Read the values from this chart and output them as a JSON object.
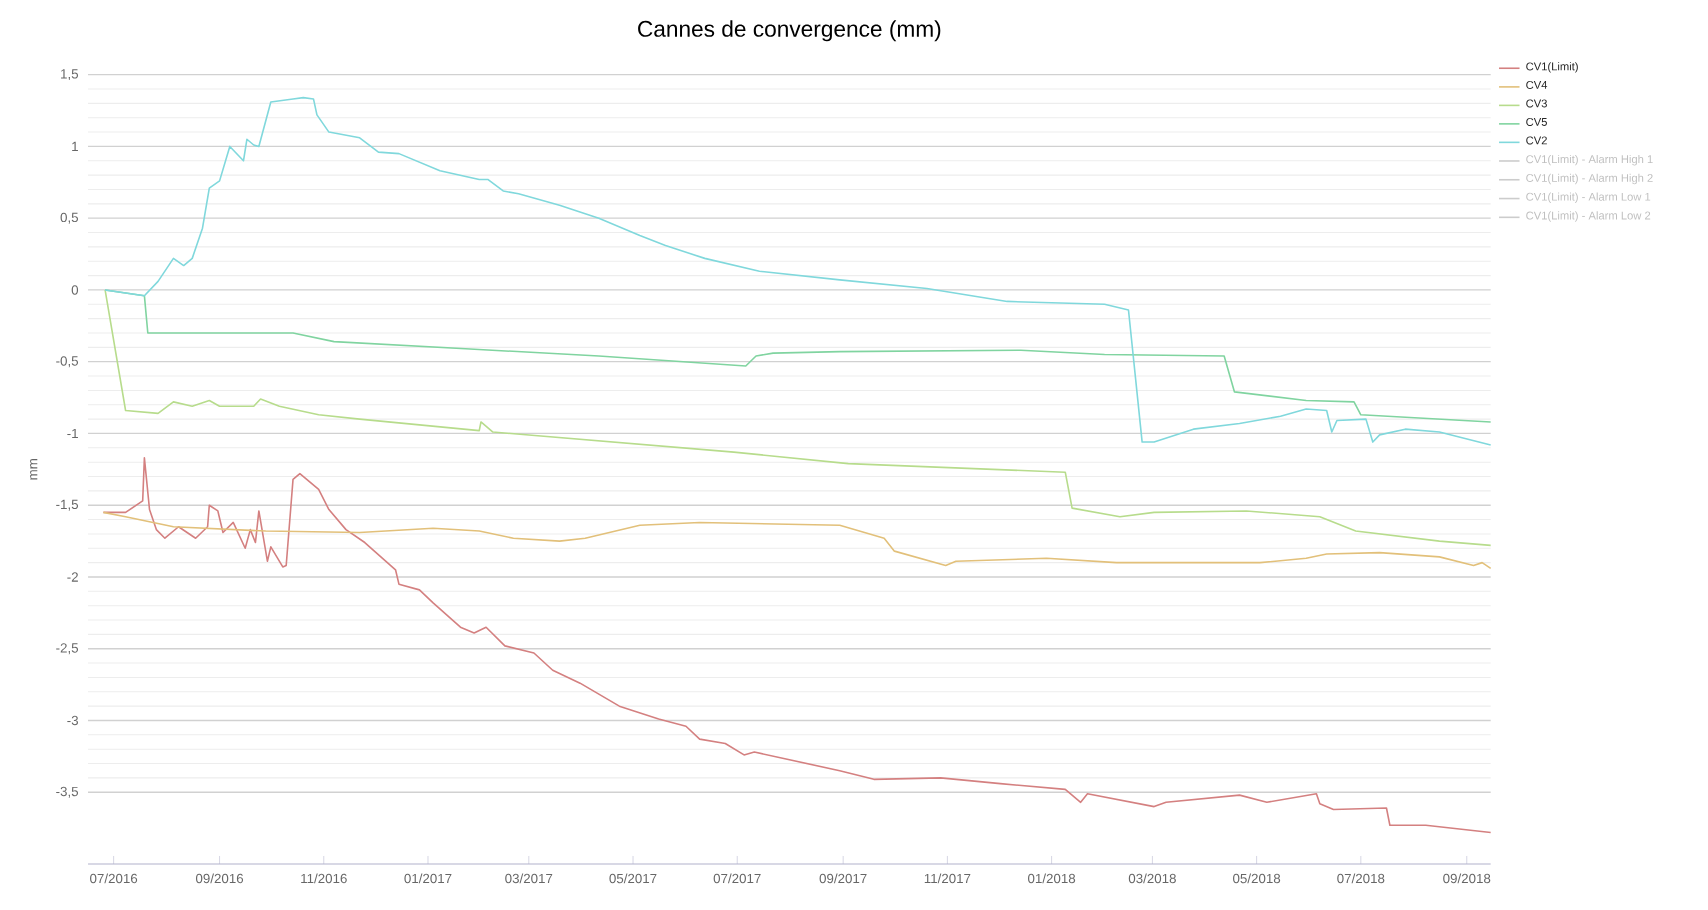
{
  "chart_data": {
    "type": "line",
    "title": "Cannes de convergence (mm)",
    "ylabel": "mm",
    "xlim": [
      "2016-06-16",
      "2018-09-15"
    ],
    "ylim": [
      -4,
      1.5
    ],
    "xticks": [
      {
        "value": "2016-07-01",
        "label": "07/2016"
      },
      {
        "value": "2016-09-01",
        "label": "09/2016"
      },
      {
        "value": "2016-11-01",
        "label": "11/2016"
      },
      {
        "value": "2017-01-01",
        "label": "01/2017"
      },
      {
        "value": "2017-03-01",
        "label": "03/2017"
      },
      {
        "value": "2017-05-01",
        "label": "05/2017"
      },
      {
        "value": "2017-07-01",
        "label": "07/2017"
      },
      {
        "value": "2017-09-01",
        "label": "09/2017"
      },
      {
        "value": "2017-11-01",
        "label": "11/2017"
      },
      {
        "value": "2018-01-01",
        "label": "01/2018"
      },
      {
        "value": "2018-03-01",
        "label": "03/2018"
      },
      {
        "value": "2018-05-01",
        "label": "05/2018"
      },
      {
        "value": "2018-07-01",
        "label": "07/2018"
      },
      {
        "value": "2018-09-01",
        "label": "09/2018"
      }
    ],
    "yticks": [
      {
        "value": -3.5,
        "label": "-3,5"
      },
      -3,
      {
        "value": -2.5,
        "label": "-2,5"
      },
      -2,
      {
        "value": -1.5,
        "label": "-1,5"
      },
      -1,
      {
        "value": -0.5,
        "label": "-0,5"
      },
      0,
      {
        "value": 0.5,
        "label": "0,5"
      },
      1,
      {
        "value": 1.5,
        "label": "1,5"
      }
    ],
    "grid": "y",
    "legend": "top right",
    "series": [
      {
        "name": "CV1(Limit)",
        "color": "#d48080",
        "x": [
          "2016-06-25",
          "2016-07-08",
          "2016-07-18",
          "2016-07-19",
          "2016-07-22",
          "2016-07-26",
          "2016-07-31",
          "2016-08-08",
          "2016-08-18",
          "2016-08-25",
          "2016-08-26",
          "2016-08-31",
          "2016-09-03",
          "2016-09-09",
          "2016-09-16",
          "2016-09-19",
          "2016-09-22",
          "2016-09-24",
          "2016-09-29",
          "2016-10-01",
          "2016-10-08",
          "2016-10-10",
          "2016-10-14",
          "2016-10-18",
          "2016-10-29",
          "2016-11-04",
          "2016-11-14",
          "2016-11-25",
          "2016-12-13",
          "2016-12-15",
          "2016-12-27",
          "2017-01-04",
          "2017-01-20",
          "2017-01-28",
          "2017-02-04",
          "2017-02-15",
          "2017-03-04",
          "2017-03-15",
          "2017-03-31",
          "2017-04-23",
          "2017-05-16",
          "2017-06-01",
          "2017-06-09",
          "2017-06-24",
          "2017-07-05",
          "2017-07-11",
          "2017-08-30",
          "2017-09-19",
          "2017-10-28",
          "2017-12-02",
          "2018-01-09",
          "2018-01-18",
          "2018-01-22",
          "2018-03-02",
          "2018-03-09",
          "2018-04-21",
          "2018-05-07",
          "2018-06-05",
          "2018-06-07",
          "2018-06-15",
          "2018-07-16",
          "2018-07-18",
          "2018-08-08",
          "2018-09-15"
        ],
        "values": [
          -1.55,
          -1.55,
          -1.47,
          -1.17,
          -1.53,
          -1.67,
          -1.73,
          -1.65,
          -1.73,
          -1.65,
          -1.5,
          -1.54,
          -1.69,
          -1.62,
          -1.8,
          -1.67,
          -1.76,
          -1.54,
          -1.89,
          -1.79,
          -1.93,
          -1.92,
          -1.32,
          -1.28,
          -1.39,
          -1.53,
          -1.67,
          -1.76,
          -1.95,
          -2.05,
          -2.09,
          -2.18,
          -2.35,
          -2.39,
          -2.35,
          -2.48,
          -2.53,
          -2.65,
          -2.74,
          -2.9,
          -2.99,
          -3.04,
          -3.13,
          -3.16,
          -3.24,
          -3.22,
          -3.35,
          -3.41,
          -3.4,
          -3.44,
          -3.48,
          -3.57,
          -3.51,
          -3.6,
          -3.57,
          -3.52,
          -3.57,
          -3.51,
          -3.58,
          -3.62,
          -3.61,
          -3.73,
          -3.73,
          -3.78
        ]
      },
      {
        "name": "CV4",
        "color": "#e2c07a",
        "x": [
          "2016-06-25",
          "2016-07-08",
          "2016-08-05",
          "2016-09-28",
          "2016-11-22",
          "2017-01-04",
          "2017-01-31",
          "2017-02-20",
          "2017-03-19",
          "2017-04-03",
          "2017-05-05",
          "2017-06-09",
          "2017-08-30",
          "2017-09-25",
          "2017-10-01",
          "2017-10-31",
          "2017-11-06",
          "2017-12-29",
          "2018-02-08",
          "2018-05-03",
          "2018-05-30",
          "2018-06-11",
          "2018-07-12",
          "2018-08-16",
          "2018-09-05",
          "2018-09-10",
          "2018-09-15"
        ],
        "values": [
          -1.55,
          -1.58,
          -1.65,
          -1.68,
          -1.69,
          -1.66,
          -1.68,
          -1.73,
          -1.75,
          -1.73,
          -1.64,
          -1.62,
          -1.64,
          -1.73,
          -1.82,
          -1.92,
          -1.89,
          -1.87,
          -1.9,
          -1.9,
          -1.87,
          -1.84,
          -1.83,
          -1.86,
          -1.92,
          -1.9,
          -1.94
        ]
      },
      {
        "name": "CV3",
        "color": "#b7dc8c",
        "x": [
          "2016-06-26",
          "2016-07-08",
          "2016-07-27",
          "2016-08-05",
          "2016-08-16",
          "2016-08-26",
          "2016-09-01",
          "2016-09-21",
          "2016-09-25",
          "2016-10-06",
          "2016-10-29",
          "2016-11-22",
          "2017-01-31",
          "2017-02-01",
          "2017-02-08",
          "2017-06-29",
          "2017-09-04",
          "2018-01-09",
          "2018-01-13",
          "2018-02-10",
          "2018-03-02",
          "2018-04-25",
          "2018-06-07",
          "2018-06-28",
          "2018-08-16",
          "2018-09-15"
        ],
        "values": [
          0,
          -0.84,
          -0.86,
          -0.78,
          -0.81,
          -0.77,
          -0.81,
          -0.81,
          -0.76,
          -0.81,
          -0.87,
          -0.9,
          -0.98,
          -0.92,
          -0.99,
          -1.13,
          -1.21,
          -1.27,
          -1.52,
          -1.58,
          -1.55,
          -1.54,
          -1.58,
          -1.68,
          -1.75,
          -1.78
        ]
      },
      {
        "name": "CV5",
        "color": "#80d4a0",
        "x": [
          "2016-06-26",
          "2016-07-19",
          "2016-07-21",
          "2016-10-14",
          "2016-11-07",
          "2017-01-23",
          "2017-04-11",
          "2017-07-06",
          "2017-07-12",
          "2017-07-22",
          "2017-08-30",
          "2017-12-14",
          "2018-02-01",
          "2018-04-12",
          "2018-04-18",
          "2018-05-30",
          "2018-06-27",
          "2018-07-01",
          "2018-09-15"
        ],
        "values": [
          0,
          -0.04,
          -0.3,
          -0.3,
          -0.36,
          -0.41,
          -0.46,
          -0.53,
          -0.46,
          -0.44,
          -0.43,
          -0.42,
          -0.45,
          -0.46,
          -0.71,
          -0.77,
          -0.78,
          -0.87,
          -0.92
        ]
      },
      {
        "name": "CV2",
        "color": "#80d8dc",
        "x": [
          "2016-06-26",
          "2016-07-19",
          "2016-07-27",
          "2016-08-05",
          "2016-08-11",
          "2016-08-16",
          "2016-08-22",
          "2016-08-26",
          "2016-09-01",
          "2016-09-07",
          "2016-09-15",
          "2016-09-17",
          "2016-09-21",
          "2016-09-24",
          "2016-10-01",
          "2016-10-14",
          "2016-10-20",
          "2016-10-26",
          "2016-10-28",
          "2016-11-04",
          "2016-11-22",
          "2016-12-03",
          "2016-12-15",
          "2017-01-08",
          "2017-01-31",
          "2017-02-05",
          "2017-02-14",
          "2017-02-23",
          "2017-03-19",
          "2017-04-11",
          "2017-05-05",
          "2017-05-20",
          "2017-06-12",
          "2017-07-14",
          "2017-08-30",
          "2017-10-20",
          "2017-12-06",
          "2018-02-01",
          "2018-02-15",
          "2018-02-23",
          "2018-03-02",
          "2018-03-25",
          "2018-04-21",
          "2018-05-15",
          "2018-05-30",
          "2018-06-11",
          "2018-06-14",
          "2018-06-17",
          "2018-07-04",
          "2018-07-08",
          "2018-07-12",
          "2018-07-27",
          "2018-08-16",
          "2018-09-15"
        ],
        "values": [
          0,
          -0.04,
          0.06,
          0.22,
          0.17,
          0.22,
          0.43,
          0.71,
          0.76,
          1.0,
          0.9,
          1.05,
          1.01,
          1.0,
          1.31,
          1.33,
          1.34,
          1.33,
          1.22,
          1.1,
          1.06,
          0.96,
          0.95,
          0.83,
          0.77,
          0.77,
          0.69,
          0.67,
          0.59,
          0.5,
          0.38,
          0.31,
          0.22,
          0.13,
          0.07,
          0.01,
          -0.08,
          -0.1,
          -0.14,
          -1.06,
          -1.06,
          -0.97,
          -0.93,
          -0.88,
          -0.83,
          -0.84,
          -0.99,
          -0.91,
          -0.9,
          -1.06,
          -1.01,
          -0.97,
          -0.99,
          -1.08
        ]
      },
      {
        "name": "CV1(Limit) - Alarm High 1",
        "color": "#cccccc"
      },
      {
        "name": "CV1(Limit) - Alarm High 2",
        "color": "#cccccc"
      },
      {
        "name": "CV1(Limit) - Alarm Low 1",
        "color": "#cccccc"
      },
      {
        "name": "CV1(Limit) - Alarm Low 2",
        "color": "#cccccc"
      }
    ]
  }
}
